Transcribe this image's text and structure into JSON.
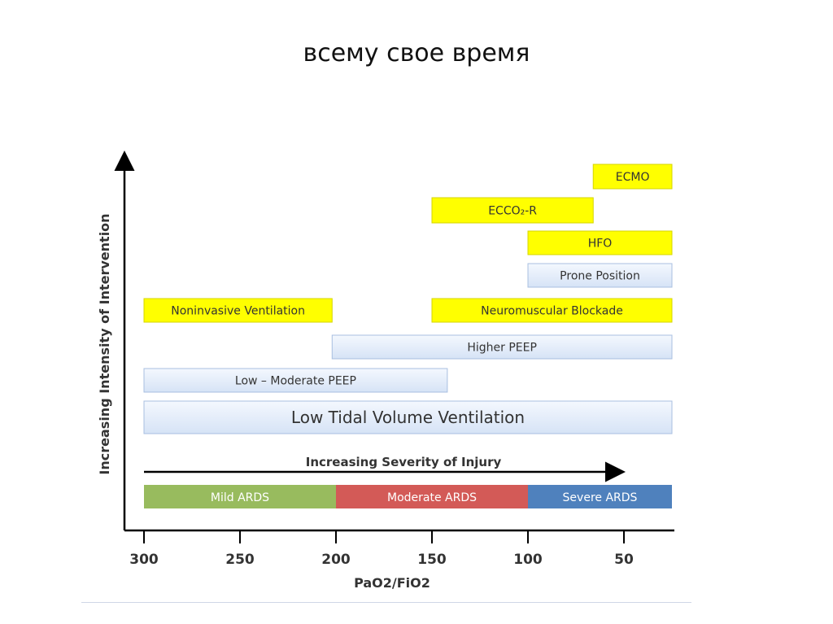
{
  "slide": {
    "title": "всему свое время"
  },
  "chart_data": {
    "type": "bar",
    "orientation": "horizontal-range",
    "x_axis": {
      "label": "PaO2/FiO2",
      "ticks": [
        300,
        250,
        200,
        150,
        100,
        50
      ],
      "range": [
        300,
        25
      ],
      "reversed": true
    },
    "y_axis": {
      "label": "Increasing Intensity of Intervention"
    },
    "severity_arrow_label": "Increasing Severity of Injury",
    "severity_bands": [
      {
        "name": "Mild ARDS",
        "from": 300,
        "to": 200,
        "color": "#98bb5e"
      },
      {
        "name": "Moderate ARDS",
        "from": 200,
        "to": 100,
        "color": "#d35a57"
      },
      {
        "name": "Severe ARDS",
        "from": 100,
        "to": 25,
        "color": "#4f81bd"
      }
    ],
    "interventions": [
      {
        "name": "Low Tidal Volume Ventilation",
        "from": 300,
        "to": 25,
        "style": "blue",
        "level": 1
      },
      {
        "name": "Low – Moderate PEEP",
        "from": 300,
        "to": 142,
        "style": "blue",
        "level": 2
      },
      {
        "name": "Higher PEEP",
        "from": 202,
        "to": 25,
        "style": "blue",
        "level": 3
      },
      {
        "name": "Noninvasive Ventilation",
        "from": 300,
        "to": 202,
        "style": "yellow",
        "level": 4
      },
      {
        "name": "Neuromuscular Blockade",
        "from": 150,
        "to": 25,
        "style": "yellow",
        "level": 4
      },
      {
        "name": "Prone Position",
        "from": 100,
        "to": 25,
        "style": "blue",
        "level": 5
      },
      {
        "name": "HFO",
        "from": 100,
        "to": 25,
        "style": "yellow",
        "level": 6
      },
      {
        "name": "ECCO₂-R",
        "from": 150,
        "to": 66,
        "style": "yellow",
        "level": 7
      },
      {
        "name": "ECMO",
        "from": 66,
        "to": 25,
        "style": "yellow",
        "level": 8
      }
    ],
    "colors": {
      "yellow": "#ffff00",
      "blue_light": "#e4edfa",
      "blue_edge": "#a8bfe0",
      "axis": "#000000"
    }
  }
}
